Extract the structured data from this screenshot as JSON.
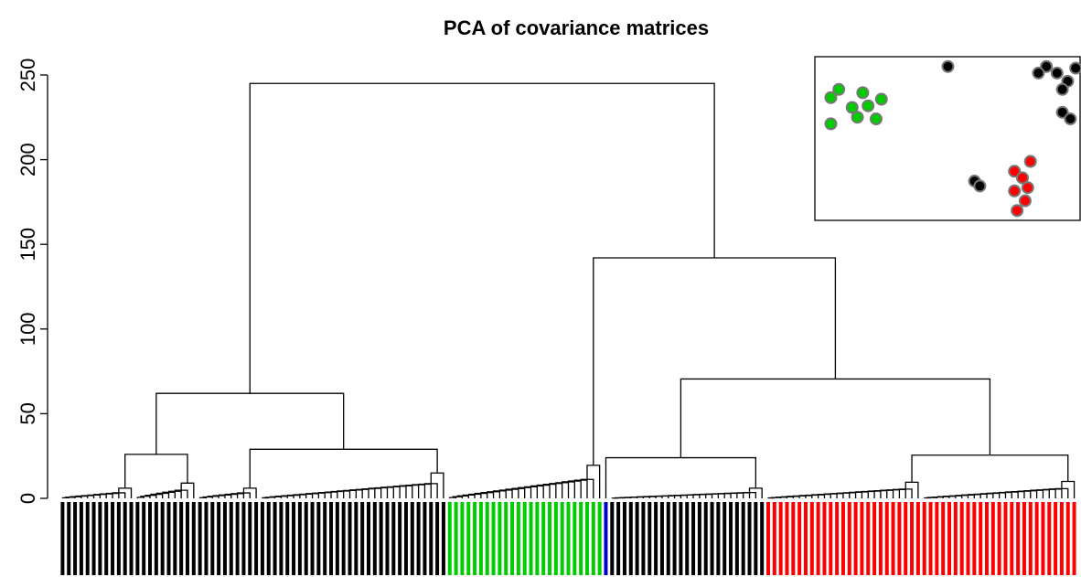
{
  "chart_data": {
    "type": "dendrogram",
    "title": "PCA of covariance matrices",
    "ylim": [
      0,
      250
    ],
    "yticks": [
      0,
      50,
      100,
      150,
      200,
      250
    ],
    "tree": {
      "height": 245,
      "children": [
        {
          "height": 62,
          "children": [
            {
              "height": 26,
              "children": [
                {
                  "height": 6,
                  "size": 12,
                  "color": "#000000"
                },
                {
                  "height": 9,
                  "size": 10,
                  "color": "#000000"
                }
              ]
            },
            {
              "height": 29,
              "children": [
                {
                  "height": 6,
                  "size": 10,
                  "color": "#000000"
                },
                {
                  "height": 15,
                  "size": 30,
                  "color": "#000000"
                }
              ]
            }
          ]
        },
        {
          "height": 142,
          "children": [
            {
              "height": 19.5,
              "size": 25,
              "color": "#00cc00"
            },
            {
              "height": 70.5,
              "children": [
                {
                  "height": 24,
                  "children": [
                    {
                      "height": 0,
                      "size": 1,
                      "color": "#0000cc"
                    },
                    {
                      "height": 6,
                      "size": 25,
                      "color": "#000000"
                    }
                  ]
                },
                {
                  "height": 25.5,
                  "children": [
                    {
                      "height": 9.5,
                      "size": 25,
                      "color": "#ff0000"
                    },
                    {
                      "height": 10,
                      "size": 25,
                      "color": "#ff0000"
                    }
                  ]
                }
              ]
            }
          ]
        }
      ]
    },
    "inset": {
      "xlim": [
        0,
        1
      ],
      "ylim": [
        0,
        1
      ],
      "points": [
        {
          "x": 0.06,
          "y": 0.75,
          "color": "#00cc00"
        },
        {
          "x": 0.09,
          "y": 0.8,
          "color": "#00cc00"
        },
        {
          "x": 0.14,
          "y": 0.69,
          "color": "#00cc00"
        },
        {
          "x": 0.18,
          "y": 0.78,
          "color": "#00cc00"
        },
        {
          "x": 0.2,
          "y": 0.7,
          "color": "#00cc00"
        },
        {
          "x": 0.23,
          "y": 0.62,
          "color": "#00cc00"
        },
        {
          "x": 0.25,
          "y": 0.74,
          "color": "#00cc00"
        },
        {
          "x": 0.06,
          "y": 0.59,
          "color": "#00cc00"
        },
        {
          "x": 0.16,
          "y": 0.63,
          "color": "#00cc00"
        },
        {
          "x": 0.5,
          "y": 0.94,
          "color": "#000000"
        },
        {
          "x": 0.87,
          "y": 0.94,
          "color": "#000000"
        },
        {
          "x": 0.91,
          "y": 0.9,
          "color": "#000000"
        },
        {
          "x": 0.95,
          "y": 0.85,
          "color": "#000000"
        },
        {
          "x": 0.93,
          "y": 0.8,
          "color": "#000000"
        },
        {
          "x": 0.98,
          "y": 0.93,
          "color": "#000000"
        },
        {
          "x": 0.93,
          "y": 0.66,
          "color": "#000000"
        },
        {
          "x": 0.96,
          "y": 0.62,
          "color": "#000000"
        },
        {
          "x": 0.84,
          "y": 0.9,
          "color": "#000000"
        },
        {
          "x": 0.6,
          "y": 0.24,
          "color": "#000000"
        },
        {
          "x": 0.62,
          "y": 0.21,
          "color": "#000000"
        },
        {
          "x": 0.75,
          "y": 0.3,
          "color": "#ff0000"
        },
        {
          "x": 0.78,
          "y": 0.26,
          "color": "#ff0000"
        },
        {
          "x": 0.75,
          "y": 0.18,
          "color": "#ff0000"
        },
        {
          "x": 0.79,
          "y": 0.12,
          "color": "#ff0000"
        },
        {
          "x": 0.76,
          "y": 0.06,
          "color": "#ff0000"
        },
        {
          "x": 0.81,
          "y": 0.36,
          "color": "#ff0000"
        },
        {
          "x": 0.8,
          "y": 0.2,
          "color": "#ff0000"
        }
      ]
    }
  }
}
